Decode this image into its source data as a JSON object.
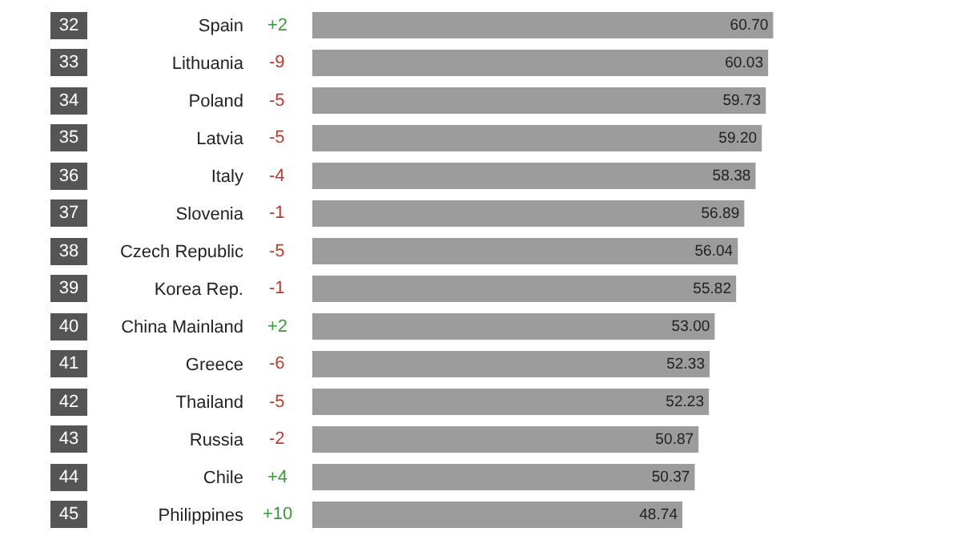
{
  "chart_data": {
    "type": "bar",
    "orientation": "horizontal",
    "color": "#9c9c9c",
    "categories": [
      "Spain",
      "Lithuania",
      "Poland",
      "Latvia",
      "Italy",
      "Slovenia",
      "Czech Republic",
      "Korea Rep.",
      "China Mainland",
      "Greece",
      "Thailand",
      "Russia",
      "Chile",
      "Philippines"
    ],
    "values": [
      60.7,
      60.03,
      59.73,
      59.2,
      58.38,
      56.89,
      56.04,
      55.82,
      53.0,
      52.33,
      52.23,
      50.87,
      50.37,
      48.74
    ],
    "value_labels": [
      "60.70",
      "60.03",
      "59.73",
      "59.20",
      "58.38",
      "56.89",
      "56.04",
      "55.82",
      "53.00",
      "52.33",
      "52.23",
      "50.87",
      "50.37",
      "48.74"
    ],
    "annotations": [
      "32",
      "+2",
      "33",
      "-9",
      "34",
      "-5",
      "35",
      "-5",
      "36",
      "-4",
      "37",
      "-1",
      "38",
      "-5",
      "39",
      "-1",
      "40",
      "+2",
      "41",
      "-6",
      "42",
      "-5",
      "43",
      "-2",
      "44",
      "+4",
      "45",
      "+10"
    ]
  }
}
